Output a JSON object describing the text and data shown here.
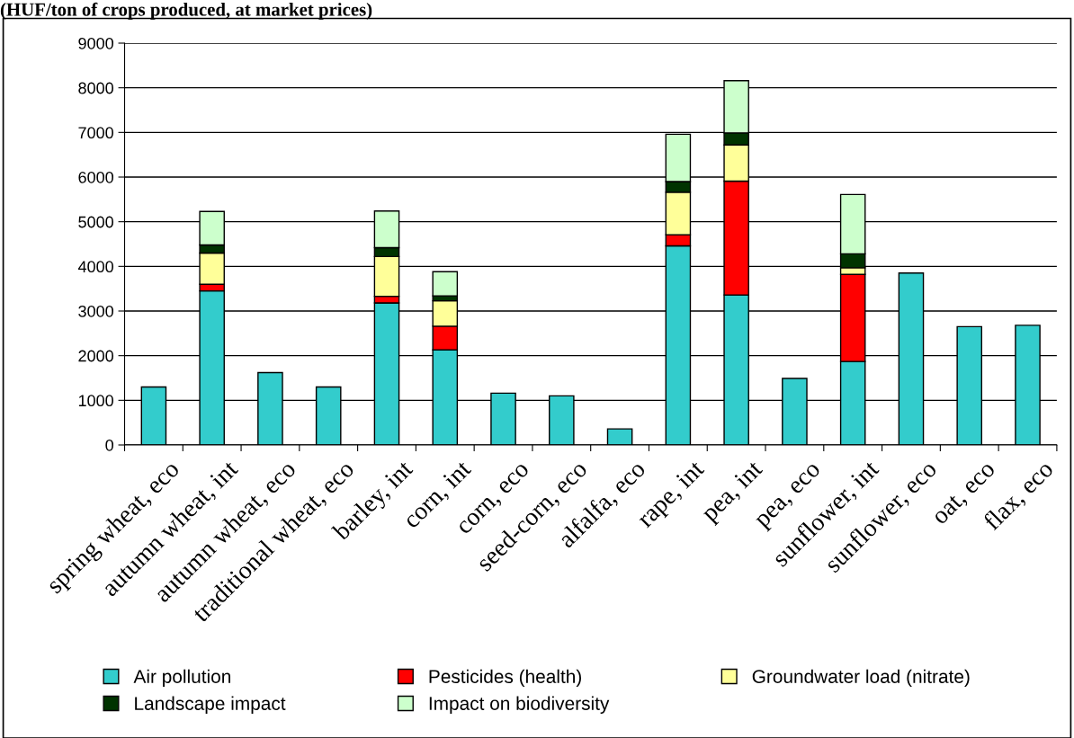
{
  "chart_data": {
    "type": "bar",
    "title": "(HUF/ton of crops produced, at market prices)",
    "stacked": true,
    "categories": [
      "spring wheat, eco",
      "autumn wheat, int",
      "autumn wheat, eco",
      "traditional wheat, eco",
      "barley, int",
      "corn, int",
      "corn, eco",
      "seed-corn, eco",
      "alfalfa, eco",
      "rape, int",
      "pea, int",
      "pea, eco",
      "sunflower, int",
      "sunflower, eco",
      "oat, eco",
      "flax, eco"
    ],
    "series": [
      {
        "name": "Air pollution",
        "color": "#33cccc",
        "values": [
          1300,
          3450,
          1620,
          1300,
          3180,
          2130,
          1160,
          1100,
          360,
          4460,
          3360,
          1490,
          1870,
          3850,
          2650,
          2680
        ]
      },
      {
        "name": "Pesticides (health)",
        "color": "#ff0000",
        "values": [
          null,
          150,
          null,
          null,
          150,
          530,
          null,
          null,
          null,
          250,
          2550,
          null,
          1950,
          null,
          null,
          null
        ]
      },
      {
        "name": "Groundwater load (nitrate)",
        "color": "#ffff99",
        "values": [
          null,
          700,
          null,
          null,
          890,
          570,
          null,
          null,
          null,
          950,
          810,
          null,
          150,
          null,
          null,
          null
        ]
      },
      {
        "name": "Landscape impact",
        "color": "#003300",
        "values": [
          null,
          180,
          null,
          null,
          200,
          110,
          null,
          null,
          null,
          240,
          270,
          null,
          310,
          null,
          null,
          null
        ]
      },
      {
        "name": "Impact on biodiversity",
        "color": "#ccffcc",
        "values": [
          null,
          750,
          null,
          null,
          820,
          540,
          null,
          null,
          null,
          1060,
          1170,
          null,
          1330,
          null,
          null,
          null
        ]
      }
    ],
    "ylim": [
      0,
      9000
    ],
    "yticks": [
      0,
      1000,
      2000,
      3000,
      4000,
      5000,
      6000,
      7000,
      8000,
      9000
    ],
    "grid": "y",
    "legend": "bottom"
  }
}
